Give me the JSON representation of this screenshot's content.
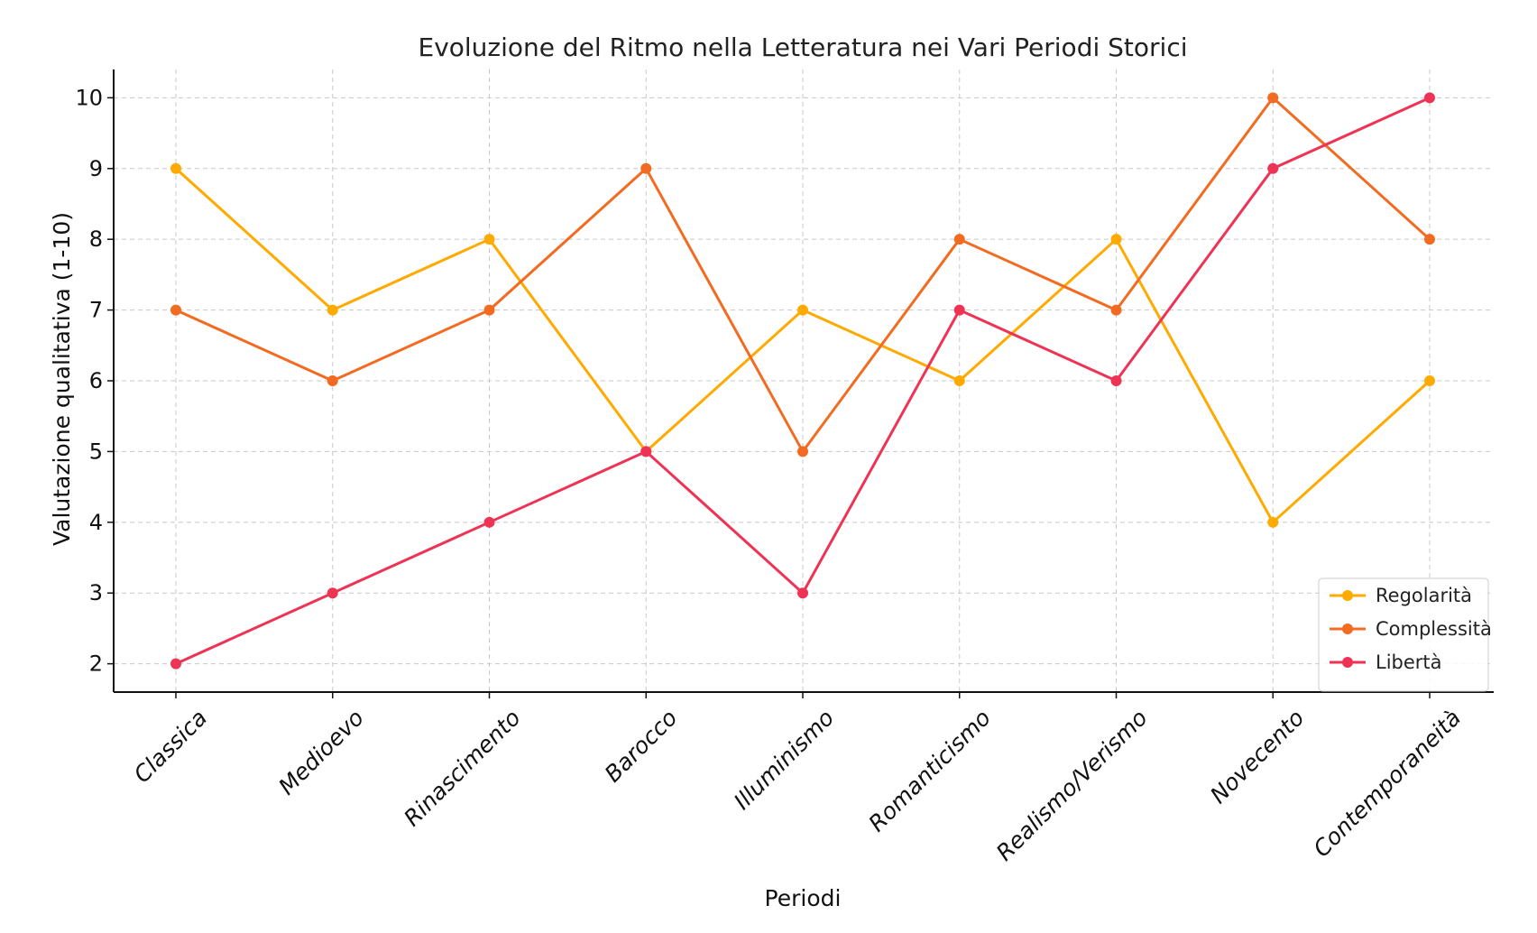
{
  "chart_data": {
    "type": "line",
    "title": "Evoluzione del Ritmo nella Letteratura nei Vari Periodi Storici",
    "xlabel": "Periodi",
    "ylabel": "Valutazione qualitativa (1-10)",
    "categories": [
      "Classica",
      "Medioevo",
      "Rinascimento",
      "Barocco",
      "Illuminismo",
      "Romanticismo",
      "Realismo/Verismo",
      "Novecento",
      "Contemporaneità"
    ],
    "ylim": [
      1.6,
      10.4
    ],
    "yticks": [
      2,
      3,
      4,
      5,
      6,
      7,
      8,
      9,
      10
    ],
    "grid": true,
    "legend_position": "bottom-right",
    "series": [
      {
        "name": "Regolarità",
        "color": "#FFAA00",
        "values": [
          9,
          7,
          8,
          5,
          7,
          6,
          8,
          4,
          6
        ]
      },
      {
        "name": "Complessità",
        "color": "#F26B21",
        "values": [
          7,
          6,
          7,
          9,
          5,
          8,
          7,
          10,
          8
        ]
      },
      {
        "name": "Libertà",
        "color": "#EE3355",
        "values": [
          2,
          3,
          4,
          5,
          3,
          7,
          6,
          9,
          10
        ]
      }
    ]
  }
}
